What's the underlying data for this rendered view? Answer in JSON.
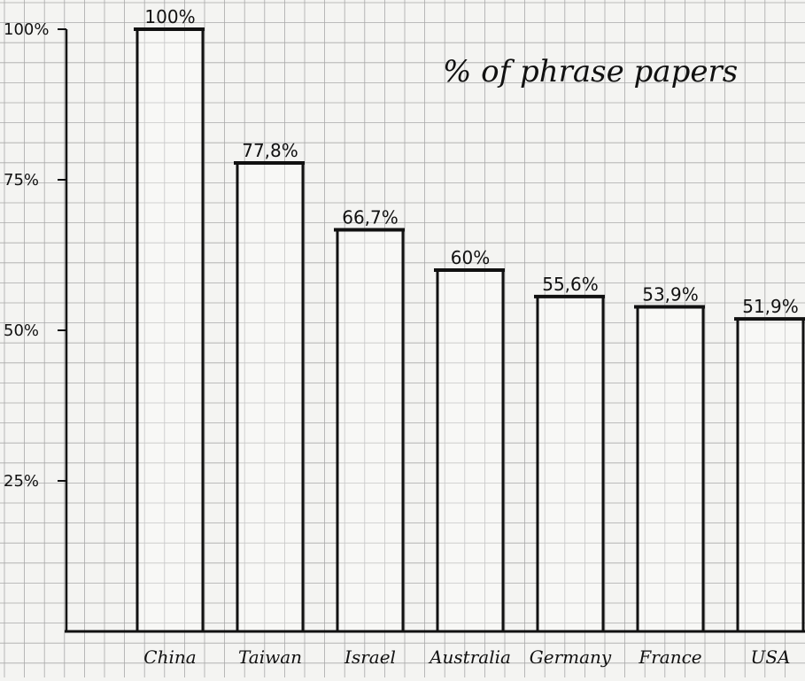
{
  "chart_data": {
    "type": "bar",
    "title": "% of phrase papers",
    "categories": [
      "China",
      "Taiwan",
      "Israel",
      "Australia",
      "Germany",
      "France",
      "USA"
    ],
    "values": [
      100,
      77.8,
      66.7,
      60,
      55.6,
      53.9,
      51.9
    ],
    "value_labels": [
      "100%",
      "77,8%",
      "66,7%",
      "60%",
      "55,6%",
      "53,9%",
      "51,9%"
    ],
    "y_ticks": [
      {
        "value": 100,
        "label": "100%"
      },
      {
        "value": 75,
        "label": "75%"
      },
      {
        "value": 50,
        "label": "50%"
      },
      {
        "value": 25,
        "label": "25%"
      }
    ],
    "ylim": [
      0,
      100
    ],
    "grid": true,
    "legend": "none",
    "colors": {
      "paper": "#f4f4f2",
      "grid": "#a9a9a9",
      "ink": "#111111",
      "bar_fill": "#ffffff"
    }
  }
}
